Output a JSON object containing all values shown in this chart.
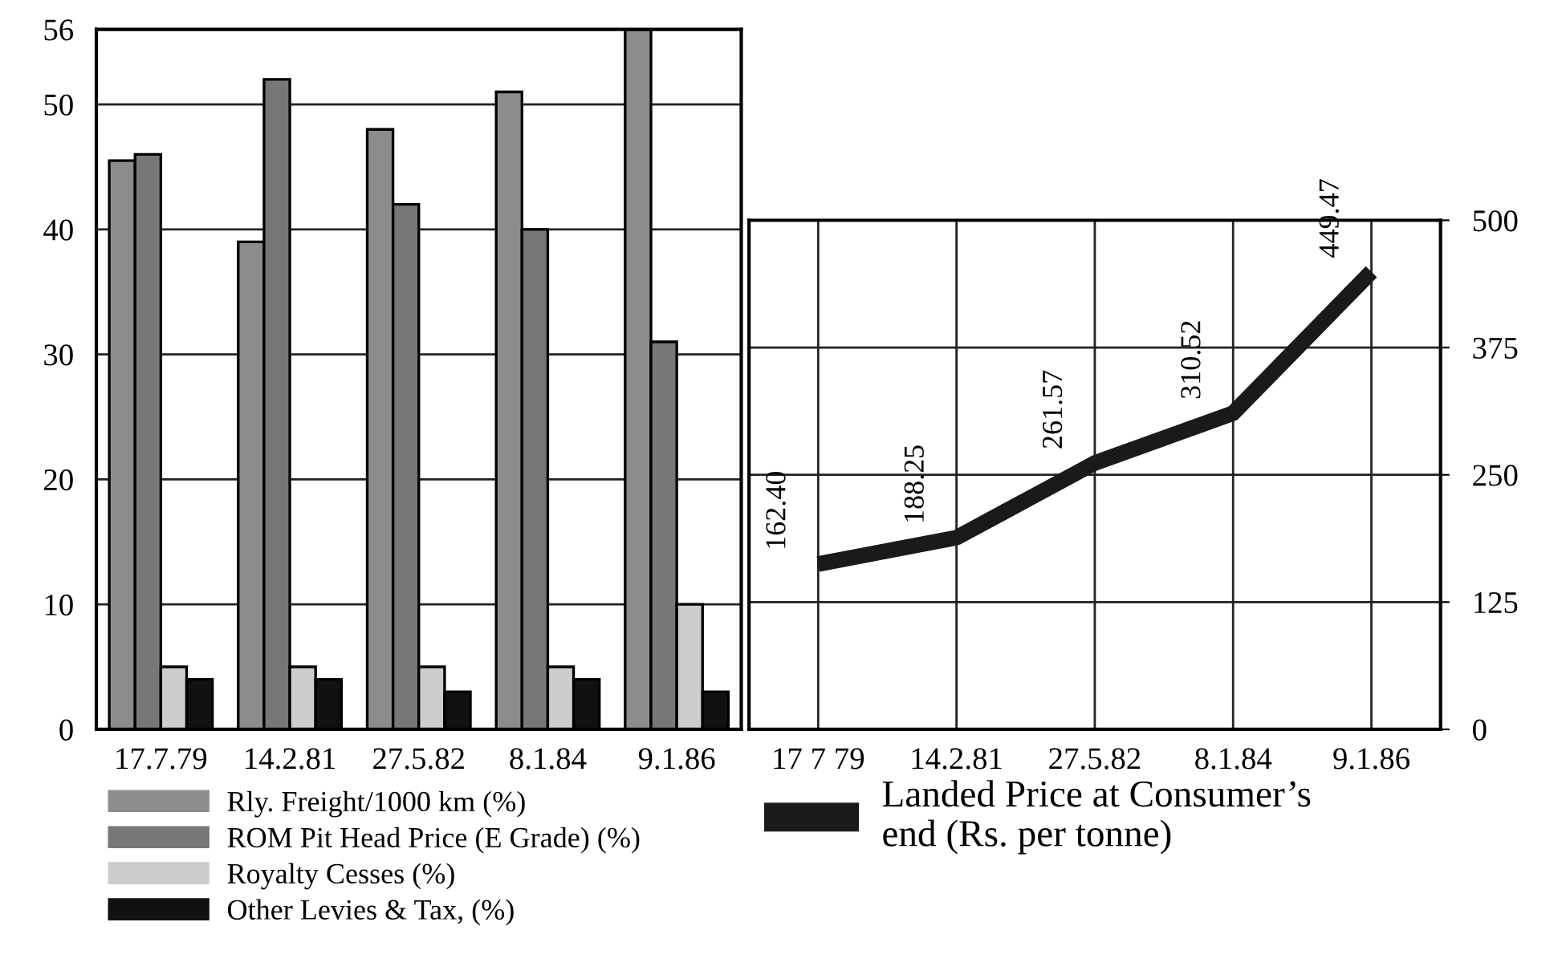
{
  "chart_data": [
    {
      "type": "bar",
      "categories": [
        "17.7.79",
        "14.2.81",
        "27.5.82",
        "8.1.84",
        "9.1.86"
      ],
      "series": [
        {
          "name": "Rly. Freight/1000 km (%)",
          "color": "#8c8c8c",
          "values": [
            45.5,
            39,
            48,
            51,
            56
          ]
        },
        {
          "name": "ROM Pit Head Price (E Grade) (%)",
          "color": "#777777",
          "values": [
            46,
            52,
            42,
            40,
            31
          ]
        },
        {
          "name": "Royalty Cesses (%)",
          "color": "#cdcdcd",
          "values": [
            5,
            5,
            5,
            5,
            10
          ]
        },
        {
          "name": "Other Levies & Tax, (%)",
          "color": "#111111",
          "values": [
            4,
            4,
            3,
            4,
            3
          ]
        }
      ],
      "ylim": [
        0,
        56
      ],
      "yticks": [
        0,
        10,
        20,
        30,
        40,
        50,
        56
      ],
      "grid": "y",
      "legend": "bottom"
    },
    {
      "type": "line",
      "categories": [
        "17 7 79",
        "14.2.81",
        "27.5.82",
        "8.1.84",
        "9.1.86"
      ],
      "series": [
        {
          "name": "Landed Price at Consumer’s\nend (Rs. per tonne)",
          "color": "#1a1a1a",
          "axis": "y2",
          "values": [
            162.4,
            188.25,
            261.57,
            310.52,
            449.47
          ],
          "value_labels": [
            "162.40",
            "188.25",
            "261.57",
            "310.52",
            "449.47"
          ]
        }
      ],
      "y2lim": [
        0,
        500
      ],
      "y2ticks": [
        0,
        125,
        250,
        375,
        500
      ],
      "grid": true,
      "legend": "bottom"
    }
  ]
}
